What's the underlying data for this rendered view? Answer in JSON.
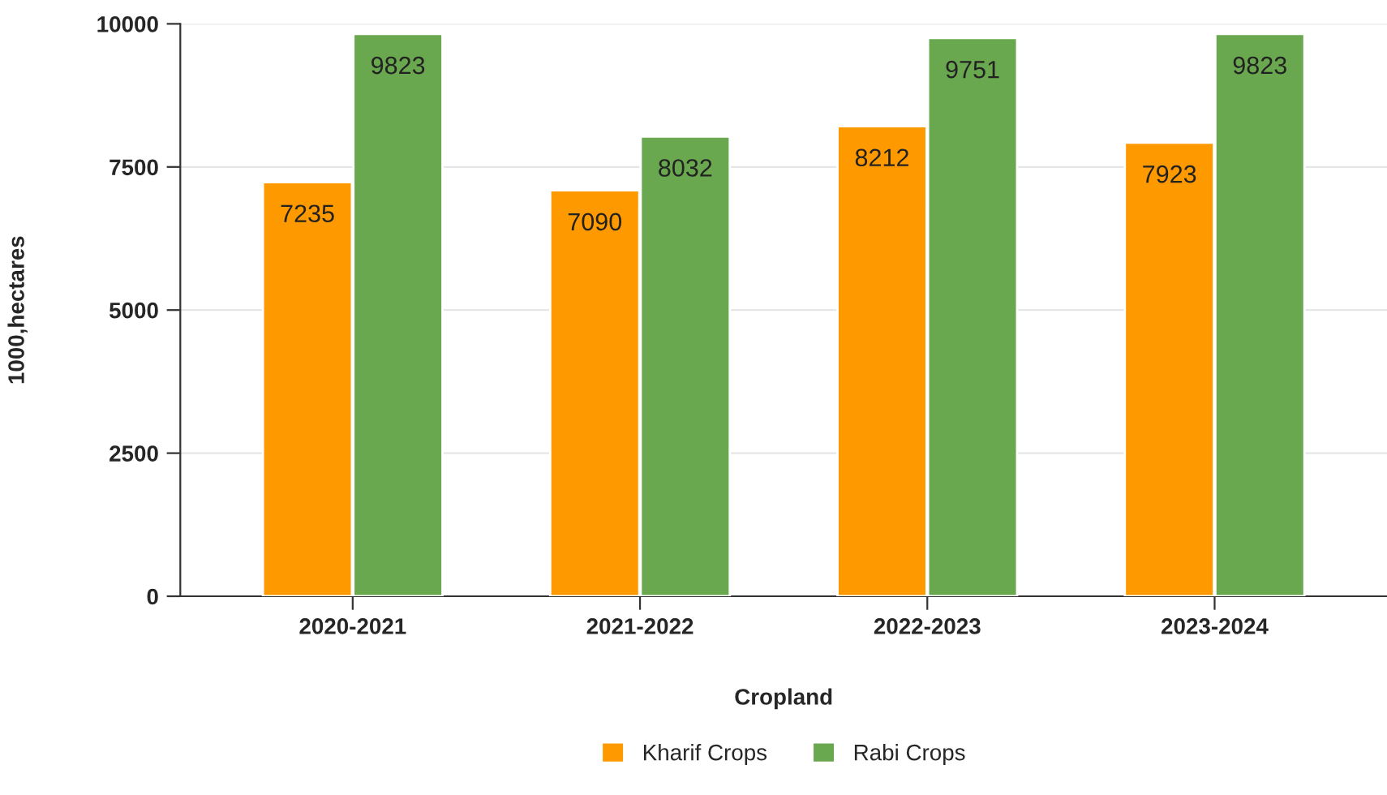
{
  "chart_data": {
    "type": "bar",
    "xlabel": "Cropland",
    "ylabel": "1000,hectares",
    "categories": [
      "2020-2021",
      "2021-2022",
      "2022-2023",
      "2023-2024"
    ],
    "series": [
      {
        "name": "Kharif Crops",
        "color": "#ff9900",
        "values": [
          7235,
          7090,
          8212,
          7923
        ]
      },
      {
        "name": "Rabi Crops",
        "color": "#6aa84f",
        "values": [
          9823,
          8032,
          9751,
          9823
        ]
      }
    ],
    "ylim": [
      0,
      10000
    ],
    "yticks": [
      0,
      2500,
      5000,
      7500,
      10000
    ],
    "grid": "y",
    "legend": "bottom",
    "data_labels": true
  }
}
